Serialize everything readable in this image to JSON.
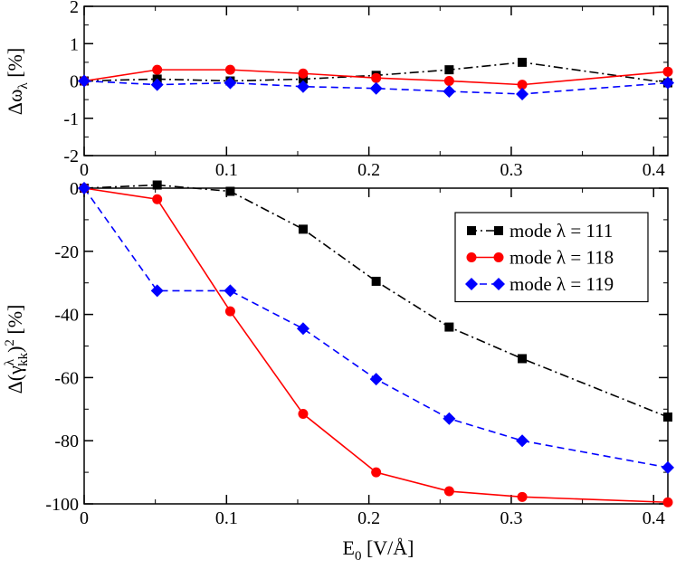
{
  "chart_data": [
    {
      "type": "line",
      "panel": "top",
      "ylabel_main": "Δω",
      "ylabel_sub": "λ",
      "ylabel_unit": " [%]",
      "xlim": [
        0,
        0.41
      ],
      "ylim": [
        -2,
        2
      ],
      "xticks": [
        0,
        0.1,
        0.2,
        0.3,
        0.4
      ],
      "yticks": [
        2,
        1,
        0,
        -1,
        -2
      ],
      "xtick_labels": [
        "0",
        "0.1",
        "0.2",
        "0.3",
        "0.4"
      ],
      "ytick_labels": [
        "2",
        "1",
        "0",
        "-1",
        "-2"
      ],
      "series": [
        {
          "name": "mode λ = 111",
          "color": "#000000",
          "dash": "10,4,2,4",
          "marker": "square",
          "x": [
            0,
            0.0513,
            0.1026,
            0.1538,
            0.2051,
            0.2564,
            0.3077,
            0.41
          ],
          "y": [
            0,
            0.05,
            0.0,
            0.05,
            0.15,
            0.3,
            0.5,
            -0.05
          ]
        },
        {
          "name": "mode λ = 118",
          "color": "#ff0000",
          "dash": "",
          "marker": "circle",
          "x": [
            0,
            0.0513,
            0.1026,
            0.1538,
            0.2051,
            0.2564,
            0.3077,
            0.41
          ],
          "y": [
            0,
            0.3,
            0.3,
            0.2,
            0.08,
            0.0,
            -0.1,
            0.25
          ]
        },
        {
          "name": "mode λ = 119",
          "color": "#0000ff",
          "dash": "8,5",
          "marker": "diamond",
          "x": [
            0,
            0.0513,
            0.1026,
            0.1538,
            0.2051,
            0.2564,
            0.3077,
            0.41
          ],
          "y": [
            0,
            -0.1,
            -0.05,
            -0.15,
            -0.2,
            -0.28,
            -0.35,
            -0.05
          ]
        }
      ]
    },
    {
      "type": "line",
      "panel": "bottom",
      "xlabel_main": "E",
      "xlabel_sub": "0",
      "xlabel_unit": " [V/Å]",
      "ylabel_main": "Δ(γ",
      "ylabel_sup": "λ",
      "ylabel_sub": "kk",
      "ylabel_close": ")",
      "ylabel_pow": "2",
      "ylabel_unit": " [%]",
      "xlim": [
        0,
        0.41
      ],
      "ylim": [
        -100,
        0
      ],
      "xticks": [
        0,
        0.1,
        0.2,
        0.3,
        0.4
      ],
      "yticks": [
        0,
        -20,
        -40,
        -60,
        -80,
        -100
      ],
      "xtick_labels": [
        "0",
        "0.1",
        "0.2",
        "0.3",
        "0.4"
      ],
      "ytick_labels": [
        "0",
        "-20",
        "-40",
        "-60",
        "-80",
        "-100"
      ],
      "legend": "top-right",
      "series": [
        {
          "name": "mode λ = 111",
          "color": "#000000",
          "dash": "10,4,2,4",
          "marker": "square",
          "x": [
            0,
            0.0513,
            0.1026,
            0.1538,
            0.2051,
            0.2564,
            0.3077,
            0.41
          ],
          "y": [
            0,
            1,
            -1,
            -13,
            -29.5,
            -44,
            -54,
            -72.5
          ]
        },
        {
          "name": "mode λ = 118",
          "color": "#ff0000",
          "dash": "",
          "marker": "circle",
          "x": [
            0,
            0.0513,
            0.1026,
            0.1538,
            0.2051,
            0.2564,
            0.3077,
            0.41
          ],
          "y": [
            0,
            -3.5,
            -39,
            -71.5,
            -90,
            -96,
            -97.8,
            -99.5
          ]
        },
        {
          "name": "mode λ = 119",
          "color": "#0000ff",
          "dash": "8,5",
          "marker": "diamond",
          "x": [
            0,
            0.0513,
            0.1026,
            0.1538,
            0.2051,
            0.2564,
            0.3077,
            0.41
          ],
          "y": [
            0,
            -32.5,
            -32.5,
            -44.5,
            -60.5,
            -73,
            -80,
            -88.5
          ]
        }
      ]
    }
  ]
}
